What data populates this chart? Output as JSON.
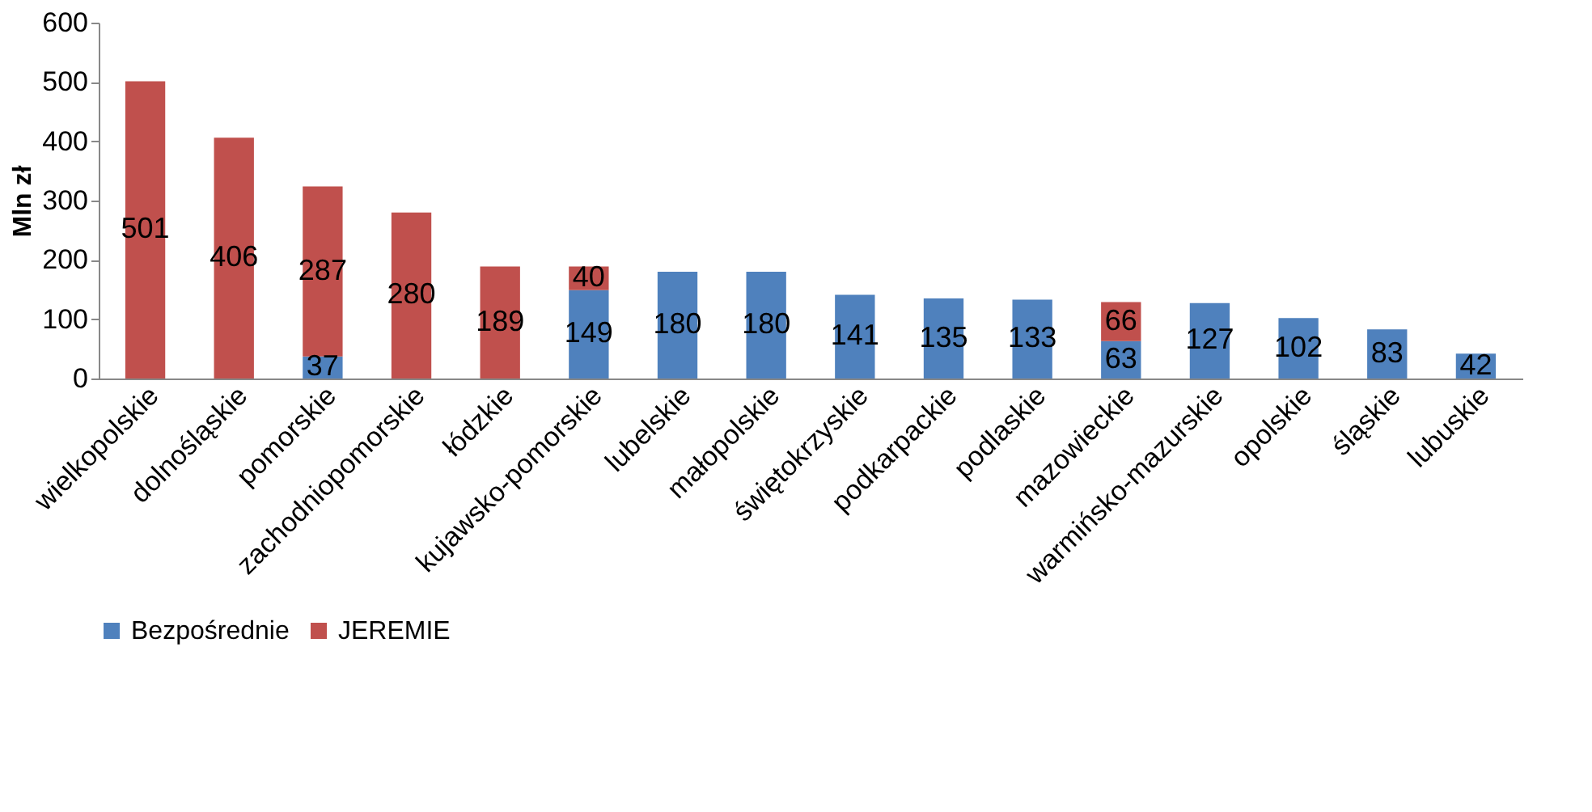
{
  "chart_data": {
    "type": "bar",
    "stacked": true,
    "ylabel": "Mln zł",
    "categories": [
      "wielkopolskie",
      "dolnośląskie",
      "pomorskie",
      "zachodniopomorskie",
      "łódzkie",
      "kujawsko-pomorskie",
      "lubelskie",
      "małopolskie",
      "świętokrzyskie",
      "podkarpackie",
      "podlaskie",
      "mazowieckie",
      "warmińsko-mazurskie",
      "opolskie",
      "śląskie",
      "lubuskie"
    ],
    "series": [
      {
        "name": "Bezpośrednie",
        "color": "#4f81bd",
        "values": [
          null,
          null,
          37,
          null,
          null,
          149,
          180,
          180,
          141,
          135,
          133,
          63,
          127,
          102,
          83,
          42
        ]
      },
      {
        "name": "JEREMIE",
        "color": "#c0504d",
        "values": [
          501,
          406,
          287,
          280,
          189,
          40,
          null,
          null,
          null,
          null,
          null,
          66,
          null,
          null,
          null,
          null
        ]
      }
    ],
    "ylim": [
      0,
      600
    ],
    "yticks": [
      0,
      100,
      200,
      300,
      400,
      500,
      600
    ],
    "grid": false,
    "legend": "bottom",
    "data_labels": true
  }
}
